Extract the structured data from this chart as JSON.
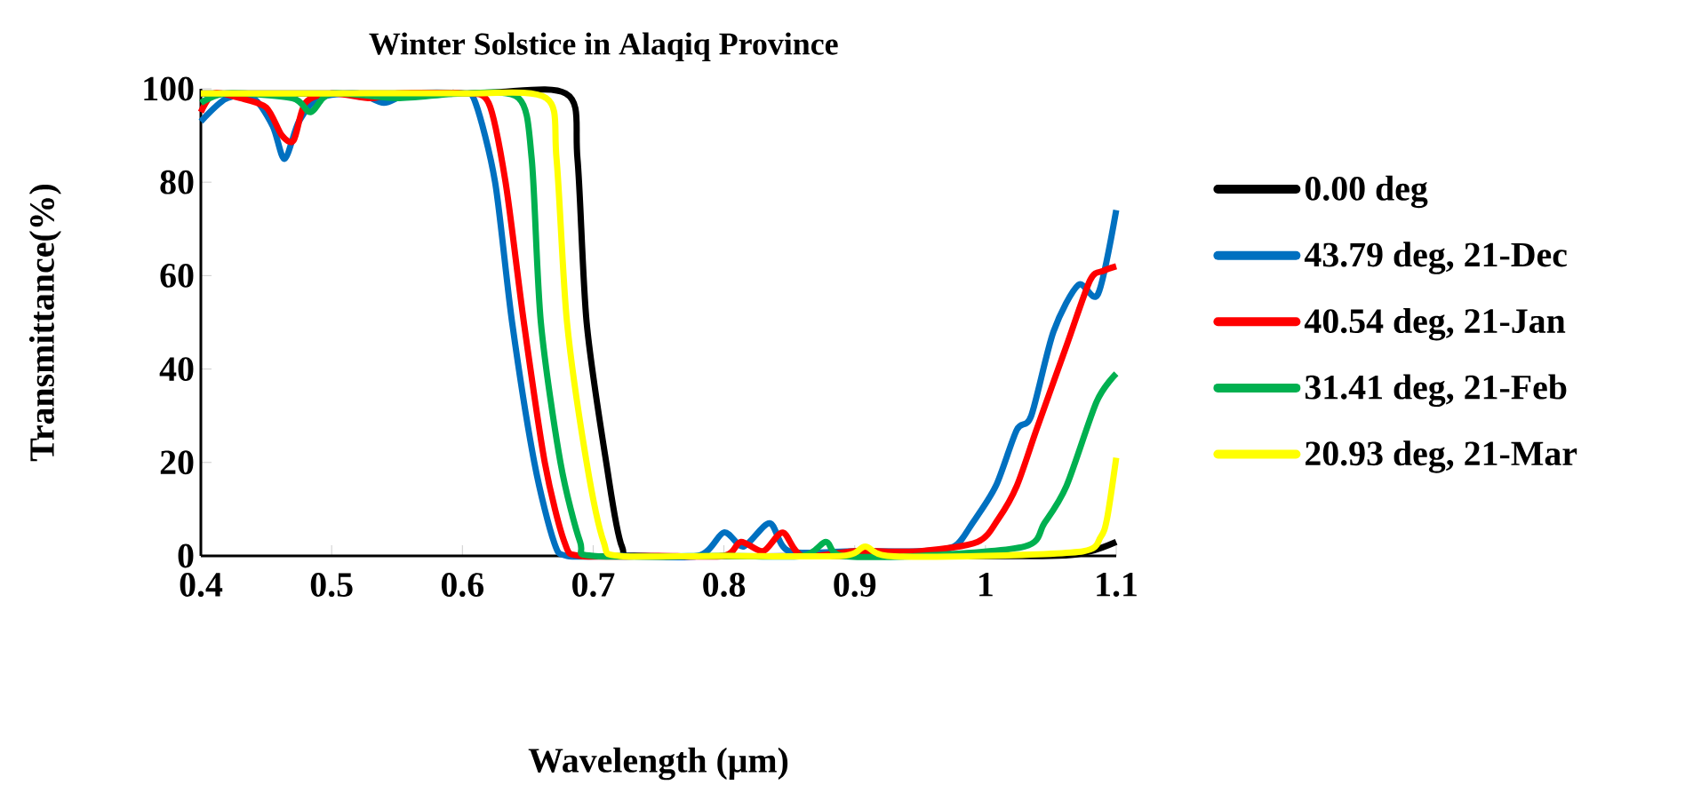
{
  "chart_data": {
    "type": "line",
    "title": "Winter Solstice in Alaqiq Province",
    "xlabel": "Wavelength (μm)",
    "ylabel": "Transmittance(%)",
    "xlim": [
      0.4,
      1.1
    ],
    "ylim": [
      0,
      100
    ],
    "xticks": [
      0.4,
      0.5,
      0.6,
      0.7,
      0.8,
      0.9,
      1,
      1.1
    ],
    "yticks": [
      0,
      20,
      40,
      60,
      80,
      100
    ],
    "grid": false,
    "legend": "right",
    "series": [
      {
        "name": "0.00 deg",
        "color": "#000000",
        "x": [
          0.4,
          0.6,
          0.679,
          0.688,
          0.695,
          0.71,
          0.722,
          0.74,
          0.9,
          1.05,
          1.08,
          1.1
        ],
        "values": [
          99,
          99,
          99,
          85,
          50,
          20,
          2,
          0,
          0,
          0,
          1,
          3
        ]
      },
      {
        "name": "43.79 deg, 21-Dec",
        "color": "#0070c0",
        "x": [
          0.4,
          0.42,
          0.44,
          0.455,
          0.464,
          0.475,
          0.49,
          0.52,
          0.54,
          0.56,
          0.6,
          0.61,
          0.625,
          0.638,
          0.655,
          0.67,
          0.68,
          0.72,
          0.78,
          0.8,
          0.815,
          0.835,
          0.85,
          0.9,
          0.95,
          0.976,
          0.99,
          1.008,
          1.024,
          1.035,
          1.052,
          1.071,
          1.086,
          1.1
        ],
        "values": [
          93,
          98,
          98,
          92,
          85,
          93,
          98,
          99,
          97,
          99,
          99,
          97,
          80,
          50,
          20,
          3,
          0,
          0,
          0,
          5,
          2,
          7,
          1,
          1,
          1,
          2,
          7,
          15,
          27,
          30,
          48,
          58,
          56,
          74
        ]
      },
      {
        "name": "40.54 deg, 21-Jan",
        "color": "#ff0000",
        "x": [
          0.4,
          0.41,
          0.43,
          0.45,
          0.462,
          0.471,
          0.48,
          0.5,
          0.53,
          0.55,
          0.6,
          0.62,
          0.633,
          0.647,
          0.663,
          0.678,
          0.69,
          0.75,
          0.8,
          0.813,
          0.83,
          0.845,
          0.86,
          0.9,
          0.95,
          0.994,
          1.01,
          1.024,
          1.039,
          1.062,
          1.08,
          1.09,
          1.1
        ],
        "values": [
          95,
          99,
          98,
          96,
          90,
          89,
          97,
          99,
          98,
          99,
          99,
          97,
          80,
          50,
          20,
          3,
          0,
          0,
          0,
          3,
          1,
          5,
          0,
          1,
          1,
          3,
          8,
          15,
          27,
          45,
          59,
          61,
          62
        ]
      },
      {
        "name": "31.41 deg, 21-Feb",
        "color": "#00b050",
        "x": [
          0.4,
          0.42,
          0.47,
          0.484,
          0.5,
          0.55,
          0.6,
          0.643,
          0.653,
          0.66,
          0.675,
          0.69,
          0.7,
          0.8,
          0.86,
          0.878,
          0.89,
          0.95,
          1.03,
          1.045,
          1.062,
          1.085,
          1.1
        ],
        "values": [
          97,
          99,
          98,
          95,
          99,
          98,
          99,
          98,
          85,
          50,
          20,
          3,
          0,
          0,
          0,
          3,
          0,
          0,
          2,
          7,
          15,
          33,
          39
        ]
      },
      {
        "name": "20.93 deg, 21-Mar",
        "color": "#ffff00",
        "x": [
          0.4,
          0.45,
          0.5,
          0.6,
          0.664,
          0.672,
          0.68,
          0.695,
          0.708,
          0.72,
          0.8,
          0.89,
          0.908,
          0.925,
          1.0,
          1.075,
          1.088,
          1.093,
          1.1
        ],
        "values": [
          99,
          99,
          99,
          99,
          98,
          85,
          50,
          20,
          3,
          0,
          0,
          0,
          2,
          0,
          0,
          1,
          4,
          8,
          21
        ]
      }
    ]
  }
}
